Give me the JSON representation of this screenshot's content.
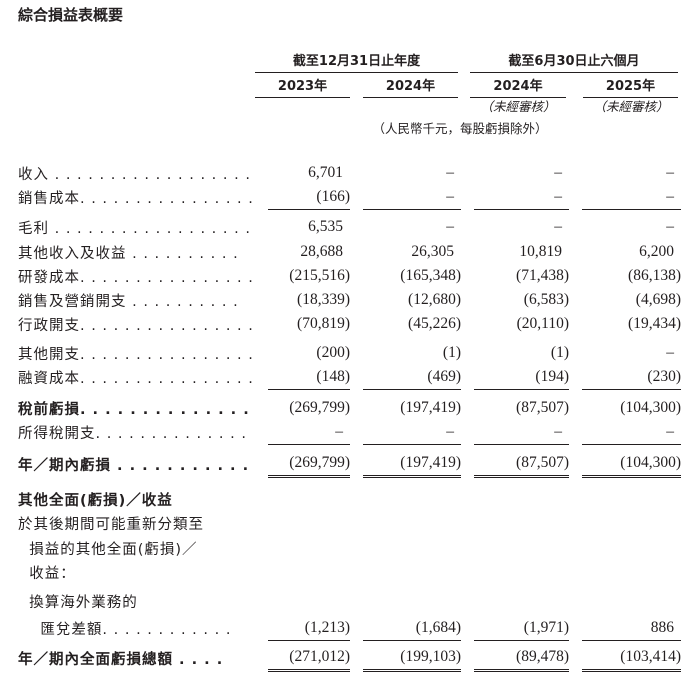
{
  "title": "綜合損益表概要",
  "headers": {
    "group_year": "截至12月31日止年度",
    "group_half": "截至6月30日止六個月",
    "years": [
      "2023年",
      "2024年",
      "2024年",
      "2025年"
    ],
    "unaudited": "（未經審核）",
    "unit": "（人民幣千元，每股虧損除外）"
  },
  "rows": [
    {
      "label": "收入 . . . . . . . . . . . . . . . . . .",
      "values": [
        "6,701",
        "–",
        "–",
        "–"
      ]
    },
    {
      "label": "銷售成本. . . . . . . . . . . . . . . .",
      "values": [
        "(166)",
        "–",
        "–",
        "–"
      ]
    },
    {
      "label": "毛利 . . . . . . . . . . . . . . . . . .",
      "values": [
        "6,535",
        "–",
        "–",
        "–"
      ]
    },
    {
      "label": "其他收入及收益 . . . . . . . . . .",
      "values": [
        "28,688",
        "26,305",
        "10,819",
        "6,200"
      ]
    },
    {
      "label": "研發成本. . . . . . . . . . . . . . . .",
      "values": [
        "(215,516)",
        "(165,348)",
        "(71,438)",
        "(86,138)"
      ]
    },
    {
      "label": "銷售及營銷開支 . . . . . . . . . .",
      "values": [
        "(18,339)",
        "(12,680)",
        "(6,583)",
        "(4,698)"
      ]
    },
    {
      "label": "行政開支. . . . . . . . . . . . . . . .",
      "values": [
        "(70,819)",
        "(45,226)",
        "(20,110)",
        "(19,434)"
      ]
    },
    {
      "label": "其他開支. . . . . . . . . . . . . . . .",
      "values": [
        "(200)",
        "(1)",
        "(1)",
        "–"
      ]
    },
    {
      "label": "融資成本. . . . . . . . . . . . . . . .",
      "values": [
        "(148)",
        "(469)",
        "(194)",
        "(230)"
      ]
    },
    {
      "label": "稅前虧損. . . . . . . . . . . . . . . .",
      "values": [
        "(269,799)",
        "(197,419)",
        "(87,507)",
        "(104,300)"
      ]
    },
    {
      "label": "所得稅開支. . . . . . . . . . . . . .",
      "values": [
        "–",
        "–",
        "–",
        "–"
      ]
    },
    {
      "label": "年／期內虧損 . . . . . . . . . . .",
      "values": [
        "(269,799)",
        "(197,419)",
        "(87,507)",
        "(104,300)"
      ]
    },
    {
      "label": "其他全面(虧損)／收益",
      "values": [
        "",
        "",
        "",
        ""
      ]
    },
    {
      "label": "於其後期間可能重新分類至",
      "values": [
        "",
        "",
        "",
        ""
      ]
    },
    {
      "label": "  損益的其他全面(虧損)／",
      "values": [
        "",
        "",
        "",
        ""
      ]
    },
    {
      "label": "  收益：",
      "values": [
        "",
        "",
        "",
        ""
      ]
    },
    {
      "label": "  換算海外業務的",
      "values": [
        "",
        "",
        "",
        ""
      ]
    },
    {
      "label": "    匯兌差額. . . . . . . . . . . .",
      "values": [
        "(1,213)",
        "(1,684)",
        "(1,971)",
        "886"
      ]
    },
    {
      "label": "年／期內全面虧損總額 . . . .",
      "values": [
        "(271,012)",
        "(199,103)",
        "(89,478)",
        "(103,414)"
      ]
    }
  ]
}
